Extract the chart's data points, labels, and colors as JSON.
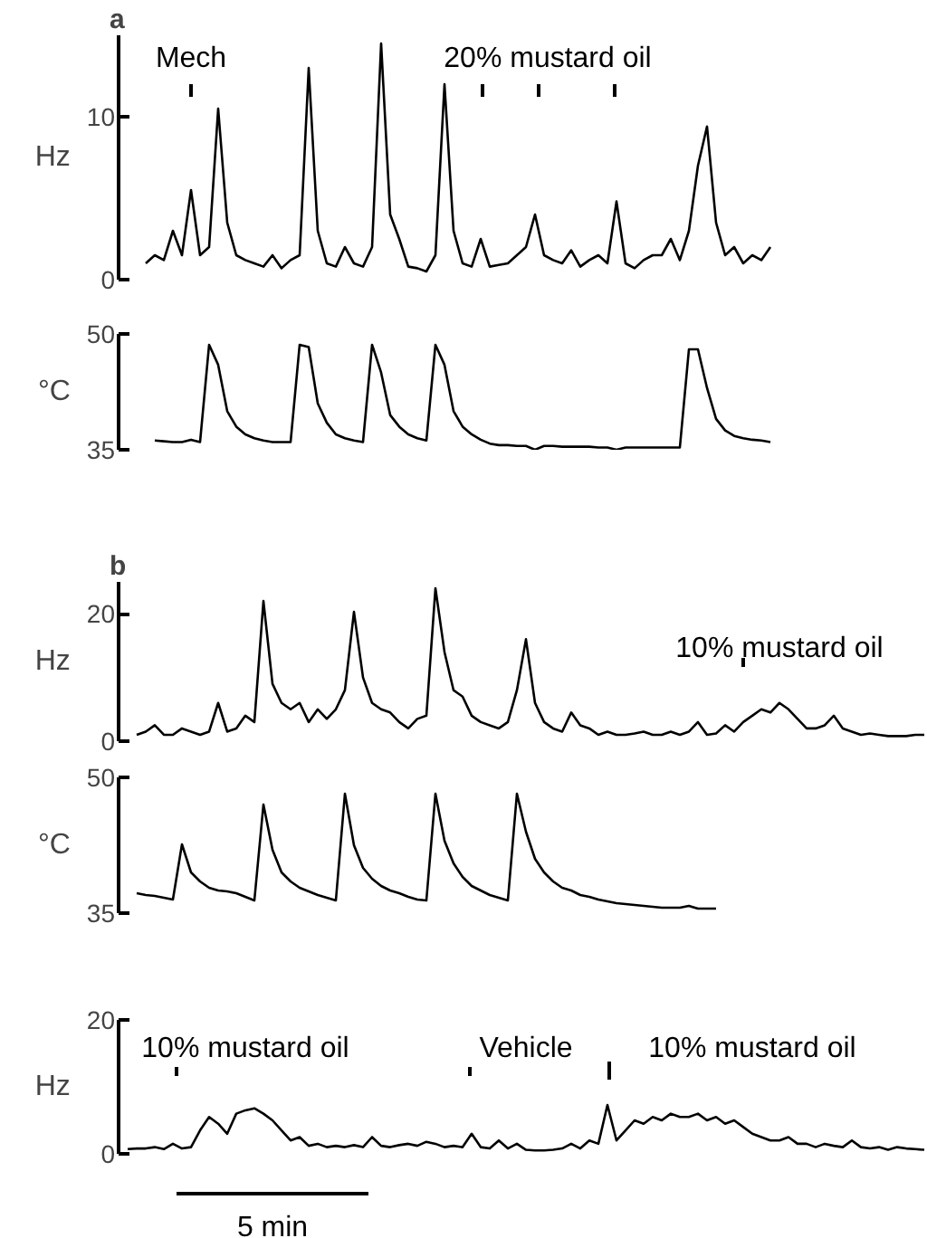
{
  "chart_data": [
    {
      "type": "line",
      "title": "a",
      "ylabel": "Hz",
      "ylim": [
        0,
        15
      ],
      "yticks": [
        0,
        10
      ],
      "tick_labels": "y",
      "annotations": [
        "Mech",
        "20% mustard oil"
      ],
      "categories": [
        null,
        null,
        null,
        null,
        null,
        null,
        null,
        null,
        null,
        null,
        null,
        null,
        null,
        null,
        null,
        null,
        null,
        null,
        null,
        null,
        null,
        null,
        null,
        null,
        null,
        null,
        null,
        null,
        null,
        null,
        null,
        null,
        null,
        null,
        null,
        null,
        null,
        null,
        null,
        null,
        null,
        null,
        null,
        null,
        null,
        null,
        null,
        null,
        null,
        null,
        null,
        null,
        null,
        null,
        null,
        null,
        null,
        null,
        null,
        null,
        null,
        null,
        null,
        null,
        null,
        null,
        null,
        null,
        null,
        null,
        null,
        null,
        null,
        null,
        null,
        null,
        null,
        null,
        null,
        null,
        null,
        null,
        null,
        null,
        null,
        null,
        null,
        null,
        null
      ],
      "series": [
        {
          "color": "#000000",
          "values": [
            null,
            null,
            1.0,
            1.5,
            1.2,
            3.0,
            1.5,
            5.5,
            1.5,
            2.0,
            10.5,
            3.5,
            1.5,
            1.2,
            1.0,
            0.8,
            1.5,
            0.7,
            1.2,
            1.5,
            13.0,
            3.0,
            1.0,
            0.8,
            2.0,
            1.0,
            0.8,
            2.0,
            14.5,
            4.0,
            2.5,
            0.8,
            0.7,
            0.5,
            1.5,
            12.0,
            3.0,
            1.0,
            0.8,
            2.5,
            0.8,
            0.9,
            1.0,
            1.5,
            2.0,
            4.0,
            1.5,
            1.2,
            1.0,
            1.8,
            0.8,
            1.2,
            1.5,
            1.0,
            4.8,
            1.0,
            0.7,
            1.2,
            1.5,
            1.5,
            2.5,
            1.2,
            3.0,
            7.0,
            9.4,
            3.5,
            1.5,
            2.0,
            1.0,
            1.5,
            1.2,
            2.0,
            null,
            null,
            null,
            null,
            null,
            null,
            null,
            null,
            null,
            null,
            null,
            null,
            null,
            null,
            null,
            null,
            null
          ]
        }
      ]
    },
    {
      "type": "line",
      "ylabel": "°C",
      "ylim": [
        35,
        50
      ],
      "yticks": [
        35,
        50
      ],
      "tick_labels": "y",
      "categories": [
        null,
        null,
        null,
        null,
        null,
        null,
        null,
        null,
        null,
        null,
        null,
        null,
        null,
        null,
        null,
        null,
        null,
        null,
        null,
        null,
        null,
        null,
        null,
        null,
        null,
        null,
        null,
        null,
        null,
        null,
        null,
        null,
        null,
        null,
        null,
        null,
        null,
        null,
        null,
        null,
        null,
        null,
        null,
        null,
        null,
        null,
        null,
        null,
        null,
        null,
        null,
        null,
        null,
        null,
        null,
        null,
        null,
        null,
        null,
        null,
        null,
        null,
        null,
        null,
        null,
        null,
        null,
        null,
        null,
        null,
        null,
        null,
        null,
        null,
        null,
        null,
        null,
        null,
        null,
        null,
        null,
        null,
        null,
        null,
        null,
        null,
        null,
        null,
        null
      ],
      "series": [
        {
          "color": "#000000",
          "values": [
            null,
            null,
            null,
            36.2,
            36.1,
            36.0,
            36.0,
            36.3,
            36.0,
            48.6,
            46.0,
            40.0,
            38.0,
            37.0,
            36.5,
            36.2,
            36.0,
            36.0,
            36.0,
            48.6,
            48.3,
            41.0,
            38.5,
            37.0,
            36.5,
            36.2,
            36.0,
            48.6,
            45.0,
            39.5,
            38.0,
            37.0,
            36.5,
            36.2,
            48.6,
            46.0,
            40.0,
            38.0,
            37.0,
            36.3,
            35.8,
            35.6,
            35.6,
            35.5,
            35.5,
            35.0,
            35.5,
            35.5,
            35.4,
            35.4,
            35.4,
            35.4,
            35.3,
            35.3,
            35.0,
            35.3,
            35.3,
            35.3,
            35.3,
            35.3,
            35.3,
            35.3,
            48.0,
            48.0,
            43.0,
            39.0,
            37.5,
            36.8,
            36.5,
            36.3,
            36.2,
            36.0,
            null,
            null,
            null,
            null,
            null,
            null,
            null,
            null,
            null,
            null,
            null,
            null,
            null,
            null,
            null,
            null,
            null
          ]
        }
      ]
    },
    {
      "type": "line",
      "title": "b",
      "ylabel": "Hz",
      "ylim": [
        0,
        25
      ],
      "yticks": [
        0,
        20
      ],
      "tick_labels": "y",
      "annotations": [
        "10% mustard oil"
      ],
      "categories": [
        null,
        null,
        null,
        null,
        null,
        null,
        null,
        null,
        null,
        null,
        null,
        null,
        null,
        null,
        null,
        null,
        null,
        null,
        null,
        null,
        null,
        null,
        null,
        null,
        null,
        null,
        null,
        null,
        null,
        null,
        null,
        null,
        null,
        null,
        null,
        null,
        null,
        null,
        null,
        null,
        null,
        null,
        null,
        null,
        null,
        null,
        null,
        null,
        null,
        null,
        null,
        null,
        null,
        null,
        null,
        null,
        null,
        null,
        null,
        null,
        null,
        null,
        null,
        null,
        null,
        null,
        null,
        null,
        null,
        null,
        null,
        null,
        null,
        null,
        null,
        null,
        null,
        null,
        null,
        null,
        null,
        null,
        null,
        null,
        null,
        null,
        null,
        null,
        null
      ],
      "series": [
        {
          "color": "#000000",
          "values": [
            null,
            1.0,
            1.5,
            2.5,
            1.0,
            1.0,
            2.0,
            1.5,
            1.0,
            1.5,
            6.0,
            1.5,
            2.0,
            4.0,
            3.0,
            22.0,
            9.0,
            6.0,
            5.0,
            6.0,
            3.0,
            5.0,
            3.5,
            5.0,
            8.0,
            20.3,
            10.0,
            6.0,
            5.0,
            4.5,
            3.0,
            2.0,
            3.5,
            4.0,
            24.0,
            14.0,
            8.0,
            7.0,
            4.0,
            3.0,
            2.5,
            2.0,
            3.0,
            8.0,
            16.0,
            6.0,
            3.0,
            2.0,
            1.5,
            4.5,
            2.5,
            2.0,
            1.0,
            1.5,
            1.0,
            1.0,
            1.2,
            1.5,
            1.0,
            1.0,
            1.5,
            1.0,
            1.5,
            3.0,
            1.0,
            1.2,
            2.5,
            1.5,
            3.0,
            4.0,
            5.0,
            4.5,
            6.0,
            5.0,
            3.5,
            2.0,
            2.0,
            2.5,
            4.0,
            2.0,
            1.5,
            1.0,
            1.2,
            1.0,
            0.8,
            0.8,
            0.8,
            1.0,
            1.0
          ]
        }
      ]
    },
    {
      "type": "line",
      "ylabel": "°C",
      "ylim": [
        35,
        50
      ],
      "yticks": [
        35,
        50
      ],
      "tick_labels": "y",
      "categories": [
        null,
        null,
        null,
        null,
        null,
        null,
        null,
        null,
        null,
        null,
        null,
        null,
        null,
        null,
        null,
        null,
        null,
        null,
        null,
        null,
        null,
        null,
        null,
        null,
        null,
        null,
        null,
        null,
        null,
        null,
        null,
        null,
        null,
        null,
        null,
        null,
        null,
        null,
        null,
        null,
        null,
        null,
        null,
        null,
        null,
        null,
        null,
        null,
        null,
        null,
        null,
        null,
        null,
        null,
        null,
        null,
        null,
        null,
        null,
        null,
        null,
        null,
        null,
        null,
        null,
        null,
        null,
        null,
        null,
        null,
        null,
        null,
        null,
        null,
        null,
        null,
        null,
        null,
        null,
        null,
        null,
        null,
        null,
        null,
        null,
        null,
        null,
        null,
        null
      ],
      "series": [
        {
          "color": "#000000",
          "values": [
            null,
            37.2,
            37.0,
            36.9,
            36.7,
            36.5,
            42.6,
            39.5,
            38.5,
            37.8,
            37.5,
            37.4,
            37.2,
            36.8,
            36.4,
            47.0,
            42.0,
            39.5,
            38.5,
            37.8,
            37.4,
            37.0,
            36.7,
            36.4,
            48.2,
            42.5,
            40.0,
            38.8,
            38.0,
            37.5,
            37.2,
            36.8,
            36.5,
            36.4,
            48.2,
            43.0,
            40.5,
            39.0,
            38.0,
            37.5,
            37.0,
            36.7,
            36.4,
            48.2,
            44.0,
            41.0,
            39.5,
            38.5,
            37.8,
            37.5,
            37.0,
            36.8,
            36.5,
            36.3,
            36.1,
            36.0,
            35.9,
            35.8,
            35.7,
            35.6,
            35.6,
            35.6,
            35.8,
            35.5,
            35.5,
            35.5,
            null,
            null,
            null,
            null,
            null,
            null,
            null,
            null,
            null,
            null,
            null,
            null,
            null,
            null,
            null,
            null,
            null,
            null,
            null,
            null,
            null,
            null,
            null
          ]
        }
      ]
    },
    {
      "type": "line",
      "ylabel": "Hz",
      "ylim": [
        0,
        20
      ],
      "yticks": [
        0,
        20
      ],
      "tick_labels": "y",
      "annotations": [
        "10% mustard oil",
        "Vehicle",
        "10% mustard oil"
      ],
      "categories": [
        null,
        null,
        null,
        null,
        null,
        null,
        null,
        null,
        null,
        null,
        null,
        null,
        null,
        null,
        null,
        null,
        null,
        null,
        null,
        null,
        null,
        null,
        null,
        null,
        null,
        null,
        null,
        null,
        null,
        null,
        null,
        null,
        null,
        null,
        null,
        null,
        null,
        null,
        null,
        null,
        null,
        null,
        null,
        null,
        null,
        null,
        null,
        null,
        null,
        null,
        null,
        null,
        null,
        null,
        null,
        null,
        null,
        null,
        null,
        null,
        null,
        null,
        null,
        null,
        null,
        null,
        null,
        null,
        null,
        null,
        null,
        null,
        null,
        null,
        null,
        null,
        null,
        null,
        null,
        null,
        null,
        null,
        null,
        null,
        null,
        null,
        null,
        null,
        null
      ],
      "series": [
        {
          "color": "#000000",
          "values": [
            0.7,
            0.8,
            0.8,
            1.0,
            0.7,
            1.5,
            0.8,
            1.0,
            3.5,
            5.5,
            4.5,
            3.0,
            6.0,
            6.5,
            6.8,
            6.0,
            5.0,
            3.5,
            2.0,
            2.5,
            1.2,
            1.5,
            1.0,
            1.2,
            1.0,
            1.3,
            1.0,
            2.5,
            1.2,
            1.0,
            1.3,
            1.5,
            1.2,
            1.8,
            1.5,
            1.0,
            1.2,
            1.0,
            3.0,
            1.0,
            0.8,
            2.0,
            0.8,
            1.5,
            0.6,
            0.5,
            0.5,
            0.6,
            0.8,
            1.5,
            0.8,
            2.0,
            1.5,
            7.3,
            2.0,
            3.5,
            5.0,
            4.5,
            5.5,
            5.0,
            6.0,
            5.5,
            5.5,
            6.0,
            5.0,
            5.5,
            4.5,
            5.0,
            4.0,
            3.0,
            2.5,
            2.0,
            2.0,
            2.5,
            1.5,
            1.5,
            1.0,
            1.5,
            1.2,
            1.0,
            2.0,
            1.0,
            0.8,
            1.0,
            0.6,
            1.0,
            0.8,
            0.7,
            0.6
          ]
        }
      ]
    },
    {
      "type": "other",
      "annotations": [
        "5 min"
      ]
    }
  ]
}
